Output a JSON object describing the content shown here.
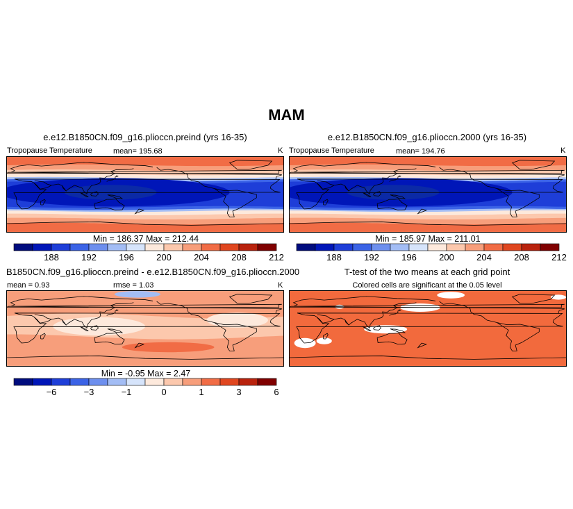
{
  "figure": {
    "title": "MAM"
  },
  "colors": {
    "abs_palette": [
      "#000c7e",
      "#0016b8",
      "#1e3ed8",
      "#3b63e6",
      "#6d8fee",
      "#a3bdf5",
      "#d6e4fb",
      "#fde9dc",
      "#fcc8ad",
      "#f79e7b",
      "#f16c45",
      "#e0461f",
      "#b9220d",
      "#800000"
    ],
    "diff_palette": [
      "#000c7e",
      "#0016b8",
      "#1e3ed8",
      "#3b63e6",
      "#6d8fee",
      "#a3bdf5",
      "#d6e4fb",
      "#fde9dc",
      "#fcc8ad",
      "#f79e7b",
      "#f16c45",
      "#e0461f",
      "#b9220d",
      "#800000"
    ],
    "signif": "#f26a3d",
    "land": "#000000"
  },
  "panels": {
    "p1": {
      "title": "e.e12.B1850CN.f09_g16.plioccn.preind (yrs 16-35)",
      "variable": "Tropopause Temperature",
      "mean": "mean= 195.68",
      "units": "K",
      "minmax": "Min = 186.37 Max = 212.44"
    },
    "p2": {
      "title": "e.e12.B1850CN.f09_g16.plioccn.2000 (yrs 16-35)",
      "variable": "Tropopause Temperature",
      "mean": "mean= 194.76",
      "units": "K",
      "minmax": "Min = 185.97 Max = 211.01"
    },
    "p3": {
      "title": "B1850CN.f09_g16.plioccn.preind - e.e12.B1850CN.f09_g16.plioccn.2000",
      "mean": "mean =   0.93",
      "rmse": "rmse =    1.03",
      "units": "K",
      "minmax": "Min =   -0.95 Max =    2.47"
    },
    "p4": {
      "title": "T-test of the two means at each grid point",
      "subtitle": "Colored cells are significant at the 0.05 level"
    }
  },
  "chart_data": [
    {
      "type": "heatmap",
      "title": "e.e12.B1850CN.f09_g16.plioccn.preind (yrs 16-35)",
      "variable": "Tropopause Temperature",
      "units": "K",
      "mean": 195.68,
      "min": 186.37,
      "max": 212.44,
      "colorbar_ticks": [
        "188",
        "192",
        "196",
        "200",
        "204",
        "208",
        "212"
      ],
      "levels": [
        186,
        188,
        190,
        192,
        194,
        196,
        198,
        200,
        202,
        204,
        206,
        208,
        210,
        212
      ],
      "x": "longitude 0-360",
      "y": "latitude -90-90"
    },
    {
      "type": "heatmap",
      "title": "e.e12.B1850CN.f09_g16.plioccn.2000 (yrs 16-35)",
      "variable": "Tropopause Temperature",
      "units": "K",
      "mean": 194.76,
      "min": 185.97,
      "max": 211.01,
      "colorbar_ticks": [
        "188",
        "192",
        "196",
        "200",
        "204",
        "208",
        "212"
      ],
      "levels": [
        186,
        188,
        190,
        192,
        194,
        196,
        198,
        200,
        202,
        204,
        206,
        208,
        210,
        212
      ]
    },
    {
      "type": "heatmap",
      "title": "B1850CN.f09_g16.plioccn.preind - e.e12.B1850CN.f09_g16.plioccn.2000",
      "units": "K",
      "mean": 0.93,
      "rmse": 1.03,
      "min": -0.95,
      "max": 2.47,
      "colorbar_ticks": [
        "−6",
        "−3",
        "−1",
        "0",
        "1",
        "3",
        "6"
      ],
      "levels": [
        -8,
        -6,
        -4,
        -3,
        -2,
        -1,
        -0.5,
        0,
        0.5,
        1,
        2,
        3,
        4,
        6,
        8
      ]
    },
    {
      "type": "heatmap",
      "title": "T-test of the two means at each grid point",
      "subtitle": "Colored cells are significant at the 0.05 level",
      "significance_level": 0.05
    }
  ]
}
